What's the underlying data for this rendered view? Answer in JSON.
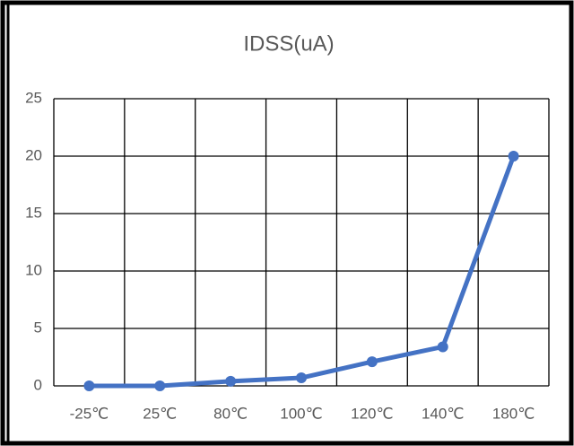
{
  "chart_data": {
    "type": "line",
    "title": "IDSS(uA)",
    "categories": [
      "-25℃",
      "25℃",
      "80℃",
      "100℃",
      "120℃",
      "140℃",
      "180℃"
    ],
    "series": [
      {
        "name": "IDSS(uA)",
        "color": "#4472c4",
        "values": [
          0,
          0,
          0.4,
          0.7,
          2.1,
          3.4,
          20
        ]
      }
    ],
    "ylim": [
      0,
      25
    ],
    "yticks": [
      0,
      5,
      10,
      15,
      20,
      25
    ],
    "grid": true
  }
}
